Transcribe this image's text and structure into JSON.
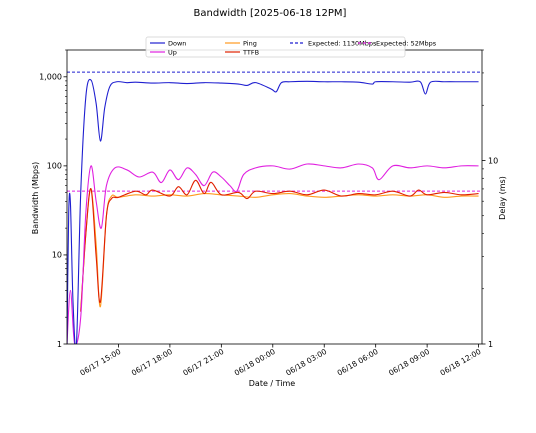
{
  "chart_data": {
    "type": "line",
    "title": "Bandwidth [2025-06-18 12PM]",
    "xlabel": "Date / Time",
    "ylabel": "Bandwidth (Mbps)",
    "ylabel_right": "Delay (ms)",
    "xlim_hours": [
      12.0,
      36.2
    ],
    "left_axis": {
      "scale": "log",
      "ylim": [
        1,
        2000
      ],
      "tick_values": [
        1,
        10,
        100,
        1000
      ],
      "tick_labels": [
        "1",
        "10",
        "100",
        "1,000"
      ]
    },
    "right_axis": {
      "scale": "log",
      "ylim": [
        1,
        40
      ],
      "tick_values": [
        1,
        10
      ],
      "tick_labels": [
        "1",
        "10"
      ]
    },
    "x_tick_hours": [
      15,
      18,
      21,
      24,
      27,
      30,
      33,
      36
    ],
    "x_tick_labels": [
      "06/17 15:00",
      "06/17 18:00",
      "06/17 21:00",
      "06/18 00:00",
      "06/18 03:00",
      "06/18 06:00",
      "06/18 09:00",
      "06/18 12:00"
    ],
    "legend": {
      "placement": "top-center",
      "entries": [
        {
          "label": "Down",
          "color": "#1f1fd0",
          "style": "solid"
        },
        {
          "label": "Up",
          "color": "#e020e0",
          "style": "solid"
        },
        {
          "label": "Ping",
          "color": "#ff9a1f",
          "style": "solid"
        },
        {
          "label": "TTFB",
          "color": "#e02000",
          "style": "solid"
        },
        {
          "label": "Expected: 1130Mbps",
          "color": "#1f1fd0",
          "style": "dashed"
        },
        {
          "label": "Expected: 52Mbps",
          "color": "#e020e0",
          "style": "dashed"
        }
      ]
    },
    "reference_lines": [
      {
        "label": "Expected: 1130Mbps",
        "value": 1130,
        "axis": "left",
        "color": "#1f1fd0"
      },
      {
        "label": "Expected: 52Mbps",
        "value": 52,
        "axis": "left",
        "color": "#e020e0"
      }
    ],
    "series": [
      {
        "name": "Down",
        "axis": "left",
        "color": "#1f1fd0",
        "x": [
          12.0,
          12.1,
          12.2,
          12.35,
          12.55,
          12.8,
          13.1,
          13.4,
          13.7,
          13.95,
          14.2,
          14.5,
          14.9,
          15.5,
          16.0,
          17.0,
          18.0,
          19.0,
          20.0,
          21.0,
          22.0,
          22.5,
          23.0,
          23.9,
          24.2,
          24.5,
          25.0,
          26.0,
          27.0,
          28.0,
          29.0,
          29.8,
          30.0,
          31.0,
          32.0,
          32.6,
          32.9,
          33.2,
          34.0,
          35.0,
          36.0
        ],
        "y": [
          1,
          30,
          38,
          3,
          1,
          50,
          600,
          920,
          500,
          190,
          450,
          780,
          880,
          860,
          870,
          850,
          860,
          840,
          860,
          850,
          830,
          800,
          860,
          730,
          680,
          860,
          880,
          890,
          880,
          880,
          870,
          830,
          880,
          880,
          870,
          880,
          640,
          870,
          880,
          880,
          880
        ]
      },
      {
        "name": "Up",
        "axis": "left",
        "color": "#e020e0",
        "x": [
          12.0,
          12.2,
          12.45,
          12.8,
          13.1,
          13.4,
          13.7,
          14.0,
          14.3,
          14.8,
          15.5,
          16.2,
          17.0,
          17.5,
          18.0,
          18.5,
          19.0,
          19.5,
          20.0,
          20.5,
          21.0,
          21.5,
          21.9,
          22.3,
          23.0,
          24.0,
          25.0,
          26.0,
          27.0,
          28.0,
          29.0,
          29.8,
          30.2,
          31.0,
          32.0,
          33.0,
          34.0,
          35.0,
          36.0
        ],
        "y": [
          1,
          4,
          1,
          2,
          30,
          100,
          40,
          20,
          60,
          95,
          90,
          75,
          85,
          65,
          90,
          70,
          95,
          80,
          60,
          85,
          75,
          60,
          52,
          80,
          95,
          100,
          92,
          105,
          100,
          95,
          105,
          95,
          70,
          100,
          95,
          100,
          95,
          100,
          100
        ]
      },
      {
        "name": "Ping",
        "axis": "right",
        "color": "#ff9a1f",
        "x": [
          12.8,
          13.1,
          13.4,
          13.7,
          13.95,
          14.3,
          14.6,
          15.0,
          16.0,
          17.0,
          18.0,
          19.0,
          20.0,
          21.0,
          22.0,
          23.0,
          24.0,
          25.0,
          26.0,
          27.0,
          28.0,
          29.0,
          30.0,
          31.0,
          32.0,
          33.0,
          34.0,
          35.0,
          36.0
        ],
        "y": [
          1.5,
          4,
          7,
          3.5,
          1.6,
          5,
          6.4,
          6.3,
          6.5,
          6.4,
          6.5,
          6.4,
          6.6,
          6.5,
          6.4,
          6.3,
          6.5,
          6.6,
          6.4,
          6.3,
          6.4,
          6.5,
          6.4,
          6.5,
          6.4,
          6.5,
          6.3,
          6.4,
          6.4
        ]
      },
      {
        "name": "TTFB",
        "axis": "right",
        "color": "#e02000",
        "x": [
          12.8,
          13.1,
          13.4,
          13.7,
          13.95,
          14.3,
          14.6,
          15.0,
          16.0,
          16.6,
          17.0,
          18.0,
          18.5,
          19.0,
          19.5,
          20.0,
          20.4,
          21.0,
          22.0,
          22.5,
          23.0,
          24.0,
          25.0,
          26.0,
          27.0,
          28.0,
          29.0,
          30.0,
          31.0,
          32.0,
          32.5,
          33.0,
          34.0,
          35.0,
          36.0
        ],
        "y": [
          1.5,
          4,
          7,
          3,
          1.7,
          5,
          6.2,
          6.3,
          6.8,
          6.5,
          6.9,
          6.4,
          7.2,
          6.5,
          7.8,
          6.6,
          7.6,
          6.5,
          6.7,
          6.2,
          6.8,
          6.6,
          6.8,
          6.5,
          6.9,
          6.4,
          6.6,
          6.5,
          6.8,
          6.4,
          6.9,
          6.5,
          6.7,
          6.5,
          6.6
        ]
      }
    ]
  }
}
